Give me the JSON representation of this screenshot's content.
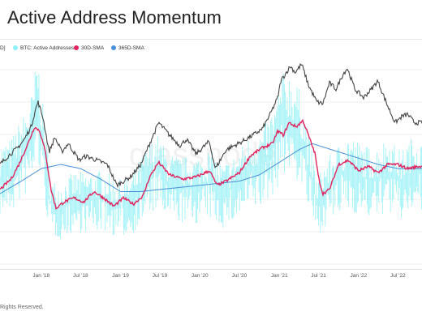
{
  "page": {
    "title": "Active Address Momentum",
    "footer": "Rights Reserved.",
    "watermark": "glassnode"
  },
  "legend": [
    {
      "label": "D]",
      "color": ""
    },
    {
      "label": "BTC: Active Addresses",
      "color": "#8ef0f6"
    },
    {
      "label": "30D-SMA",
      "color": "#e0245e"
    },
    {
      "label": "365D-SMA",
      "color": "#4a90d9"
    }
  ],
  "chart_data": {
    "type": "line",
    "x_axis": {
      "ticks": [
        "Jan '18",
        "Jul '18",
        "Jan '19",
        "Jul '19",
        "Jan '20",
        "Jul '20",
        "Jan '21",
        "Jul '21",
        "Jan '22",
        "Jul '22"
      ],
      "tick_dates": [
        "2018-01-01",
        "2018-07-01",
        "2019-01-01",
        "2019-07-01",
        "2020-01-01",
        "2020-07-01",
        "2021-01-01",
        "2021-07-01",
        "2022-01-01",
        "2022-07-01"
      ],
      "range": [
        "2017-06-25",
        "2022-10-20"
      ]
    },
    "y_axis": {
      "labels_visible": false,
      "range": [
        0,
        100
      ],
      "units": "relative"
    },
    "grid": {
      "horizontal": true,
      "vertical": false
    },
    "legend_position": "top-left",
    "series": [
      {
        "name": "BTC: Active Addresses",
        "role": "daily",
        "color": "#8ef0f6",
        "style": "spikes",
        "x": [
          "2017-06-25",
          "2017-08-15",
          "2017-10-15",
          "2017-11-20",
          "2017-12-15",
          "2018-01-10",
          "2018-02-15",
          "2018-04-01",
          "2018-06-01",
          "2018-08-15",
          "2018-10-15",
          "2018-12-15",
          "2019-02-15",
          "2019-04-15",
          "2019-06-15",
          "2019-08-15",
          "2019-10-15",
          "2019-12-15",
          "2020-02-15",
          "2020-04-15",
          "2020-06-15",
          "2020-08-15",
          "2020-10-15",
          "2020-12-15",
          "2021-01-15",
          "2021-02-15",
          "2021-03-20",
          "2021-04-15",
          "2021-05-20",
          "2021-06-25",
          "2021-07-20",
          "2021-09-15",
          "2021-11-15",
          "2022-01-15",
          "2022-03-15",
          "2022-05-15",
          "2022-07-15",
          "2022-09-15",
          "2022-10-20"
        ],
        "y": [
          44,
          46,
          56,
          64,
          80,
          58,
          30,
          29,
          33,
          33,
          34,
          30,
          31,
          40,
          48,
          40,
          39,
          39,
          42,
          36,
          40,
          47,
          49,
          60,
          71,
          72,
          68,
          62,
          46,
          30,
          36,
          42,
          48,
          44,
          42,
          47,
          41,
          48,
          45
        ]
      },
      {
        "name": "30D-SMA",
        "role": "30-day moving average",
        "color": "#e0245e",
        "x": [
          "2017-06-25",
          "2017-08-15",
          "2017-09-20",
          "2017-11-01",
          "2017-12-01",
          "2017-12-25",
          "2018-01-20",
          "2018-02-15",
          "2018-03-10",
          "2018-04-15",
          "2018-06-01",
          "2018-07-15",
          "2018-09-01",
          "2018-10-15",
          "2018-12-01",
          "2019-01-15",
          "2019-03-01",
          "2019-04-15",
          "2019-05-15",
          "2019-06-25",
          "2019-08-15",
          "2019-10-15",
          "2019-12-15",
          "2020-02-15",
          "2020-03-20",
          "2020-05-01",
          "2020-07-01",
          "2020-08-20",
          "2020-10-15",
          "2020-12-01",
          "2020-12-25",
          "2021-01-20",
          "2021-02-15",
          "2021-03-20",
          "2021-04-20",
          "2021-05-15",
          "2021-06-15",
          "2021-06-30",
          "2021-07-20",
          "2021-08-20",
          "2021-10-01",
          "2021-11-15",
          "2022-01-01",
          "2022-02-15",
          "2022-04-01",
          "2022-05-15",
          "2022-07-01",
          "2022-08-15",
          "2022-10-01",
          "2022-10-20"
        ],
        "y": [
          38,
          43,
          50,
          60,
          68,
          66,
          56,
          38,
          29,
          32,
          34,
          32,
          37,
          34,
          30,
          34,
          31,
          35,
          44,
          51,
          45,
          43,
          44,
          47,
          40,
          42,
          46,
          54,
          58,
          60,
          66,
          64,
          70,
          68,
          71,
          64,
          55,
          44,
          36,
          38,
          50,
          52,
          47,
          49,
          46,
          50,
          50,
          48,
          49,
          49
        ]
      },
      {
        "name": "365D-SMA",
        "role": "365-day moving average",
        "color": "#4a90d9",
        "x": [
          "2017-06-25",
          "2017-10-01",
          "2018-01-01",
          "2018-04-01",
          "2018-07-01",
          "2018-10-01",
          "2019-01-01",
          "2019-04-01",
          "2019-07-01",
          "2019-10-01",
          "2020-01-01",
          "2020-04-01",
          "2020-07-01",
          "2020-10-01",
          "2021-01-01",
          "2021-04-01",
          "2021-06-01",
          "2021-08-01",
          "2021-11-01",
          "2022-01-01",
          "2022-04-01",
          "2022-07-01",
          "2022-10-20"
        ],
        "y": [
          36,
          42,
          48,
          50,
          48,
          43,
          37,
          37,
          38,
          39,
          40,
          41,
          42,
          45,
          51,
          57,
          60,
          58,
          55,
          53,
          50,
          48,
          48
        ]
      },
      {
        "name": "Price",
        "role": "price overlay (legend label clipped)",
        "color": "#444444",
        "x": [
          "2017-06-25",
          "2017-08-01",
          "2017-09-15",
          "2017-10-15",
          "2017-11-15",
          "2017-12-05",
          "2017-12-17",
          "2018-01-10",
          "2018-02-06",
          "2018-03-05",
          "2018-04-05",
          "2018-05-05",
          "2018-06-25",
          "2018-07-25",
          "2018-09-15",
          "2018-11-01",
          "2018-12-15",
          "2019-02-15",
          "2019-04-05",
          "2019-05-15",
          "2019-06-26",
          "2019-08-15",
          "2019-10-01",
          "2019-11-01",
          "2019-12-15",
          "2020-02-13",
          "2020-03-13",
          "2020-05-01",
          "2020-07-15",
          "2020-09-01",
          "2020-10-15",
          "2020-11-20",
          "2020-12-25",
          "2021-01-08",
          "2021-02-21",
          "2021-03-15",
          "2021-04-14",
          "2021-05-15",
          "2021-06-22",
          "2021-07-20",
          "2021-08-20",
          "2021-09-20",
          "2021-10-20",
          "2021-11-10",
          "2021-12-15",
          "2022-01-24",
          "2022-03-01",
          "2022-03-30",
          "2022-05-15",
          "2022-06-18",
          "2022-07-20",
          "2022-08-15",
          "2022-09-15",
          "2022-10-20"
        ],
        "y": [
          50,
          54,
          58,
          62,
          68,
          76,
          80,
          72,
          56,
          63,
          56,
          60,
          52,
          54,
          52,
          50,
          40,
          44,
          50,
          60,
          70,
          64,
          59,
          62,
          55,
          61,
          48,
          57,
          61,
          64,
          67,
          74,
          82,
          90,
          97,
          94,
          98,
          88,
          80,
          79,
          89,
          86,
          93,
          96,
          86,
          82,
          86,
          90,
          78,
          70,
          73,
          74,
          70,
          70
        ]
      }
    ]
  }
}
